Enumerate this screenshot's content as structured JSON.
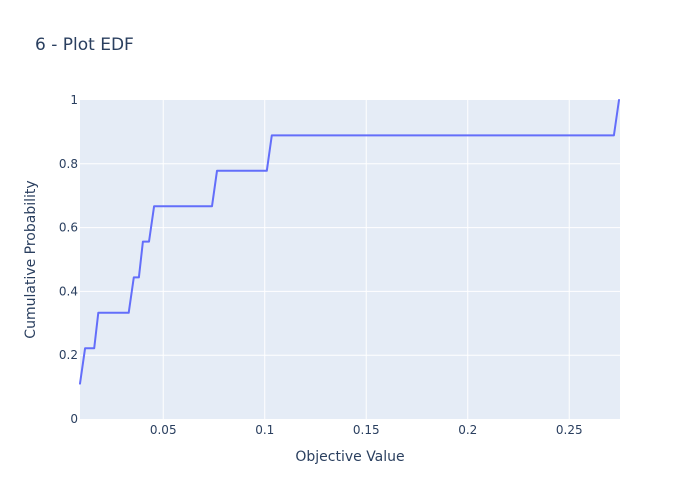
{
  "chart_data": {
    "type": "line",
    "title": "6 - Plot EDF",
    "xlabel": "Objective Value",
    "ylabel": "Cumulative Probability",
    "xlim": [
      0.009,
      0.275
    ],
    "ylim": [
      0,
      1
    ],
    "x_ticks": [
      0.05,
      0.1,
      0.15,
      0.2,
      0.25
    ],
    "x_tick_labels": [
      "0.05",
      "0.1",
      "0.15",
      "0.2",
      "0.25"
    ],
    "y_ticks": [
      0,
      0.2,
      0.4,
      0.6,
      0.8,
      1
    ],
    "y_tick_labels": [
      "0",
      "0.2",
      "0.4",
      "0.6",
      "0.8",
      "1"
    ],
    "grid": true,
    "legend": false,
    "colors": {
      "line": "#636efa",
      "plot_bg": "#e5ecf6",
      "grid": "#ffffff",
      "text": "#2a3f5f"
    },
    "series": [
      {
        "x": [
          0.009,
          0.0115,
          0.016,
          0.018,
          0.033,
          0.0355,
          0.038,
          0.04,
          0.043,
          0.0455,
          0.074,
          0.0765,
          0.101,
          0.1035,
          0.272,
          0.2745
        ],
        "y": [
          0.111,
          0.222,
          0.222,
          0.333,
          0.333,
          0.444,
          0.444,
          0.556,
          0.556,
          0.667,
          0.667,
          0.778,
          0.778,
          0.889,
          0.889,
          1.0
        ]
      }
    ]
  }
}
